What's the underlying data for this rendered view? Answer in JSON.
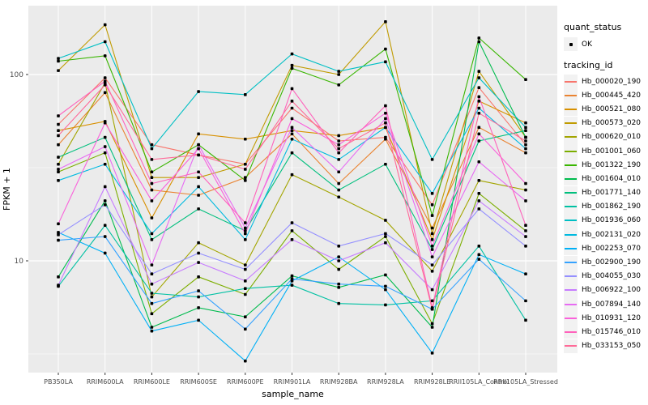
{
  "figure": {
    "background": "#FFFFFF",
    "panel_background": "#EBEBEB",
    "grid_color": "#FFFFFF",
    "tick_label_color": "#4D4D4D",
    "point_color": "#000000"
  },
  "legend": {
    "quant_title": "quant_status",
    "quant_items": [
      {
        "label": "OK",
        "symbol": "point"
      }
    ],
    "tracking_title": "tracking_id"
  },
  "chart_data": {
    "type": "line",
    "title": "",
    "xlabel": "sample_name",
    "ylabel": "FPKM + 1",
    "y_scale": "log10",
    "y_ticks": [
      10,
      100
    ],
    "y_minor_ticks": [
      3.162,
      31.62
    ],
    "ylim_log": [
      2.4,
      235
    ],
    "grid": true,
    "legend_position": "right",
    "marker": "black point (quant_status OK)",
    "categories": [
      "PB350LA",
      "RRIM600LA",
      "RRIM600LE",
      "RRIM600SE",
      "RRIM600PE",
      "RRIM901LA",
      "RRIM928BA",
      "RRIM928LA",
      "RRIM928LE",
      "RRII105LA_Control",
      "RRII105LA_Stressed"
    ],
    "series": [
      {
        "name": "Hb_000020_190",
        "color": "#F8766D",
        "values": [
          54,
          96,
          42,
          37,
          33,
          66,
          44,
          46,
          20,
          85,
          42
        ]
      },
      {
        "name": "Hb_000445_420",
        "color": "#EA8331",
        "values": [
          42,
          80,
          24,
          22.5,
          28,
          48,
          26,
          45,
          15,
          52,
          38
        ]
      },
      {
        "name": "Hb_000521_080",
        "color": "#D89000",
        "values": [
          50,
          56,
          17,
          48,
          45,
          50,
          47,
          52,
          13,
          72,
          55
        ]
      },
      {
        "name": "Hb_000573_020",
        "color": "#C09B00",
        "values": [
          105,
          185,
          28,
          28,
          33,
          112,
          100,
          192,
          14,
          104,
          46
        ]
      },
      {
        "name": "Hb_000620_010",
        "color": "#A3A500",
        "values": [
          33,
          90,
          6.4,
          12.5,
          9.5,
          29,
          22,
          16.5,
          8.8,
          27,
          24
        ]
      },
      {
        "name": "Hb_001001_060",
        "color": "#7CAE00",
        "values": [
          30,
          38,
          5.2,
          8.2,
          6.6,
          14.5,
          9,
          13.5,
          4.6,
          23,
          14.5
        ]
      },
      {
        "name": "Hb_001322_190",
        "color": "#39B600",
        "values": [
          118,
          126,
          30,
          42,
          27,
          108,
          88,
          137,
          17.5,
          157,
          94
        ]
      },
      {
        "name": "Hb_001604_010",
        "color": "#00BB4E",
        "values": [
          8.2,
          21,
          4.4,
          5.6,
          5.0,
          8.3,
          7.2,
          8.4,
          4.4,
          150,
          46
        ]
      },
      {
        "name": "Hb_001771_140",
        "color": "#00BF7D",
        "values": [
          36,
          46,
          13,
          19,
          14.5,
          38,
          24,
          33,
          11.5,
          44,
          50
        ]
      },
      {
        "name": "Hb_001862_190",
        "color": "#00C1A3",
        "values": [
          7.3,
          15.5,
          6.7,
          6.4,
          7.1,
          7.4,
          5.9,
          5.8,
          6.1,
          12,
          4.8
        ]
      },
      {
        "name": "Hb_001936_060",
        "color": "#00BFC4",
        "values": [
          122,
          150,
          40,
          81,
          78,
          129,
          104,
          117,
          35,
          96,
          52
        ]
      },
      {
        "name": "Hb_002131_020",
        "color": "#00BAE0",
        "values": [
          27,
          33,
          14,
          25,
          13,
          45,
          35,
          52,
          23,
          66,
          40
        ]
      },
      {
        "name": "Hb_002253_070",
        "color": "#00B0F6",
        "values": [
          14.2,
          11,
          4.2,
          4.8,
          2.9,
          7.8,
          10.5,
          7.0,
          3.2,
          10.8,
          8.5
        ]
      },
      {
        "name": "Hb_002900_190",
        "color": "#35A2FF",
        "values": [
          12.9,
          13.5,
          5.9,
          6.9,
          4.3,
          8.0,
          7.5,
          7.3,
          5.5,
          10.2,
          6.1
        ]
      },
      {
        "name": "Hb_004055_030",
        "color": "#9590FF",
        "values": [
          13.8,
          20,
          8.5,
          11,
          9,
          16,
          12,
          14,
          9.5,
          19,
          12
        ]
      },
      {
        "name": "Hb_006922_100",
        "color": "#C77CFF",
        "values": [
          7.4,
          25,
          7.5,
          9.8,
          7.8,
          13,
          10,
          12.5,
          7.0,
          21,
          13.5
        ]
      },
      {
        "name": "Hb_007894_140",
        "color": "#E76BF3",
        "values": [
          31,
          41,
          9.5,
          42,
          15,
          52,
          30,
          58,
          10.5,
          34,
          21
        ]
      },
      {
        "name": "Hb_010931_120",
        "color": "#FA62DB",
        "values": [
          15.8,
          55,
          21,
          40,
          14,
          58,
          42,
          62,
          12,
          48,
          26
        ]
      },
      {
        "name": "Hb_015746_010",
        "color": "#FF62BC",
        "values": [
          60,
          92,
          26,
          30,
          16,
          84,
          38,
          68,
          5.6,
          76,
          15.5
        ]
      },
      {
        "name": "Hb_033153_050",
        "color": "#FF6A98",
        "values": [
          47,
          88,
          35,
          37,
          31,
          72,
          40,
          55,
          5.5,
          62,
          44
        ]
      }
    ]
  }
}
